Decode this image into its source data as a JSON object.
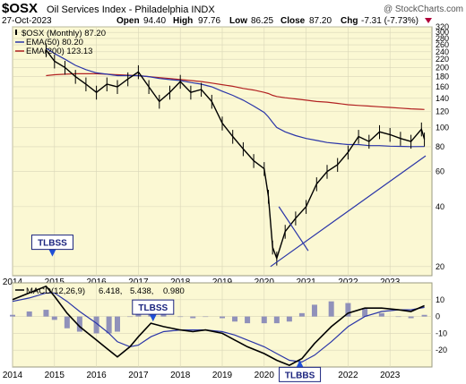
{
  "header": {
    "ticker": "$OSX",
    "name": "Oil Services Index - Philadelphia  INDX",
    "copyright": "@ StockCharts.com",
    "date": "27-Oct-2023",
    "open_label": "Open",
    "open_value": "94.40",
    "high_label": "High",
    "high_value": "97.76",
    "low_label": "Low",
    "low_value": "86.25",
    "close_label": "Close",
    "close_value": "87.20",
    "chg_label": "Chg",
    "chg_value": "-7.31 (-7.73%)"
  },
  "colors": {
    "panel_bg": "#fbf8d3",
    "grid": "#d9d6b8",
    "price": "#000000",
    "ema50": "#2a35a8",
    "ema200": "#b22222",
    "trendline": "#2a35a8",
    "histogram": "#7d7fb5",
    "arrow": "#1f4fd6",
    "down_triangle": "#b0003a"
  },
  "legend": {
    "price": "$OSX (Monthly) 87.20",
    "ema50": "EMA(50) 80.20",
    "ema200": "EMA(200) 123.13",
    "macd_name": "MACD",
    "macd_params": "(12,26,9)",
    "macd_value": "6.418,",
    "signal_value": "5.438,",
    "hist_value": "0.980"
  },
  "annotations": [
    {
      "text": "TLBSS",
      "date": 2014.95,
      "value": 22,
      "pointer": "down"
    },
    {
      "text": "TLBSS",
      "date": 2017.35,
      "value": -4,
      "pointer": "down"
    },
    {
      "text": "TLBBS",
      "date": 2020.85,
      "value": -27,
      "pointer": "up"
    }
  ],
  "chart_data": [
    {
      "type": "line",
      "name": "price-panel",
      "yscale": "log",
      "ylim": [
        18,
        320
      ],
      "xlim": [
        2014.0,
        2024.0
      ],
      "yticks": [
        20,
        40,
        60,
        80,
        100,
        120,
        140,
        160,
        180,
        200,
        220,
        240,
        260,
        280,
        300,
        320
      ],
      "xticks": [
        {
          "value": 2014,
          "label": "2014"
        },
        {
          "value": 2015,
          "label": "2015"
        },
        {
          "value": 2016,
          "label": "2016"
        },
        {
          "value": 2017,
          "label": "2017"
        },
        {
          "value": 2018,
          "label": "2018"
        },
        {
          "value": 2019,
          "label": "2019"
        },
        {
          "value": 2020,
          "label": "2020"
        },
        {
          "value": 2021,
          "label": "2021"
        },
        {
          "value": 2022,
          "label": "2022"
        },
        {
          "value": 2023,
          "label": "2023"
        }
      ],
      "x": [
        2014.8,
        2015.0,
        2015.25,
        2015.5,
        2015.75,
        2016.0,
        2016.25,
        2016.5,
        2016.75,
        2017.0,
        2017.25,
        2017.5,
        2017.75,
        2018.0,
        2018.25,
        2018.5,
        2018.75,
        2019.0,
        2019.25,
        2019.5,
        2019.75,
        2020.0,
        2020.1,
        2020.2,
        2020.3,
        2020.5,
        2020.75,
        2021.0,
        2021.25,
        2021.5,
        2021.75,
        2022.0,
        2022.25,
        2022.5,
        2022.75,
        2023.0,
        2023.25,
        2023.5,
        2023.75,
        2023.82
      ],
      "series": [
        {
          "name": "$OSX (Monthly) 87.20",
          "values": [
            245,
            215,
            200,
            180,
            165,
            150,
            165,
            160,
            175,
            190,
            160,
            135,
            150,
            170,
            150,
            155,
            135,
            105,
            90,
            78,
            68,
            62,
            45,
            25,
            22,
            30,
            35,
            40,
            52,
            60,
            65,
            75,
            90,
            85,
            95,
            92,
            88,
            85,
            98,
            87.2
          ]
        },
        {
          "name": "EMA(50) 80.20",
          "values": [
            250,
            235,
            220,
            205,
            195,
            188,
            185,
            182,
            182,
            182,
            180,
            176,
            174,
            172,
            168,
            165,
            160,
            152,
            145,
            137,
            128,
            119,
            113,
            106,
            100,
            95,
            91,
            88,
            86,
            84,
            83,
            82,
            82,
            81,
            81,
            80.5,
            80.3,
            80.1,
            80.2,
            80.2
          ]
        },
        {
          "name": "EMA(200) 123.13",
          "values": [
            182,
            184,
            185,
            186,
            186,
            186,
            185,
            184,
            183,
            182,
            180,
            178,
            176,
            174,
            172,
            170,
            167,
            164,
            161,
            157,
            154,
            150,
            148,
            145,
            143,
            141,
            139,
            137,
            135,
            134,
            132,
            130,
            129,
            128,
            127,
            126,
            125,
            124,
            123.3,
            123.13
          ]
        }
      ],
      "trendlines": [
        {
          "from": [
            2020.15,
            20
          ],
          "to": [
            2023.85,
            72
          ]
        },
        {
          "from": [
            2020.35,
            40
          ],
          "to": [
            2021.05,
            24
          ]
        }
      ]
    },
    {
      "type": "line",
      "name": "macd-panel",
      "ylim": [
        -30,
        20
      ],
      "yticks": [
        -20,
        -10,
        0,
        10
      ],
      "xlim": [
        2014.0,
        2024.0
      ],
      "xticks": [
        {
          "value": 2014,
          "label": "2014"
        },
        {
          "value": 2015,
          "label": "2015"
        },
        {
          "value": 2016,
          "label": "2016"
        },
        {
          "value": 2017,
          "label": "2017"
        },
        {
          "value": 2018,
          "label": "2018"
        },
        {
          "value": 2019,
          "label": "2019"
        },
        {
          "value": 2020,
          "label": "2020"
        },
        {
          "value": 2021,
          "label": "2021"
        },
        {
          "value": 2022,
          "label": "2022"
        },
        {
          "value": 2023,
          "label": "2023"
        }
      ],
      "x": [
        2014.0,
        2014.4,
        2014.8,
        2015.0,
        2015.3,
        2015.6,
        2016.0,
        2016.3,
        2016.5,
        2016.8,
        2017.0,
        2017.3,
        2017.6,
        2018.0,
        2018.3,
        2018.6,
        2019.0,
        2019.3,
        2019.6,
        2020.0,
        2020.3,
        2020.6,
        2020.9,
        2021.2,
        2021.6,
        2022.0,
        2022.4,
        2022.8,
        2023.2,
        2023.5,
        2023.82
      ],
      "series": [
        {
          "name": "MACD",
          "values": [
            10,
            14,
            18,
            12,
            2,
            -6,
            -14,
            -20,
            -24,
            -18,
            -12,
            -4,
            -6,
            -8,
            -9,
            -8,
            -10,
            -14,
            -18,
            -22,
            -26,
            -29,
            -25,
            -16,
            -6,
            2,
            5,
            5,
            4,
            3,
            6.418
          ]
        },
        {
          "name": "Signal",
          "values": [
            9,
            11,
            14,
            14,
            9,
            3,
            -4,
            -10,
            -15,
            -18,
            -17,
            -12,
            -9,
            -8,
            -8,
            -8,
            -9,
            -11,
            -14,
            -18,
            -22,
            -26,
            -27,
            -23,
            -15,
            -6,
            0,
            3,
            4,
            4,
            5.438
          ]
        },
        {
          "name": "Histogram",
          "values": [
            1,
            3,
            4,
            -2,
            -7,
            -9,
            -10,
            -10,
            -9,
            0,
            5,
            8,
            3,
            0,
            -1,
            0,
            -1,
            -3,
            -4,
            -4,
            -4,
            -3,
            2,
            7,
            9,
            8,
            5,
            2,
            0,
            -1,
            0.98
          ]
        }
      ]
    }
  ]
}
